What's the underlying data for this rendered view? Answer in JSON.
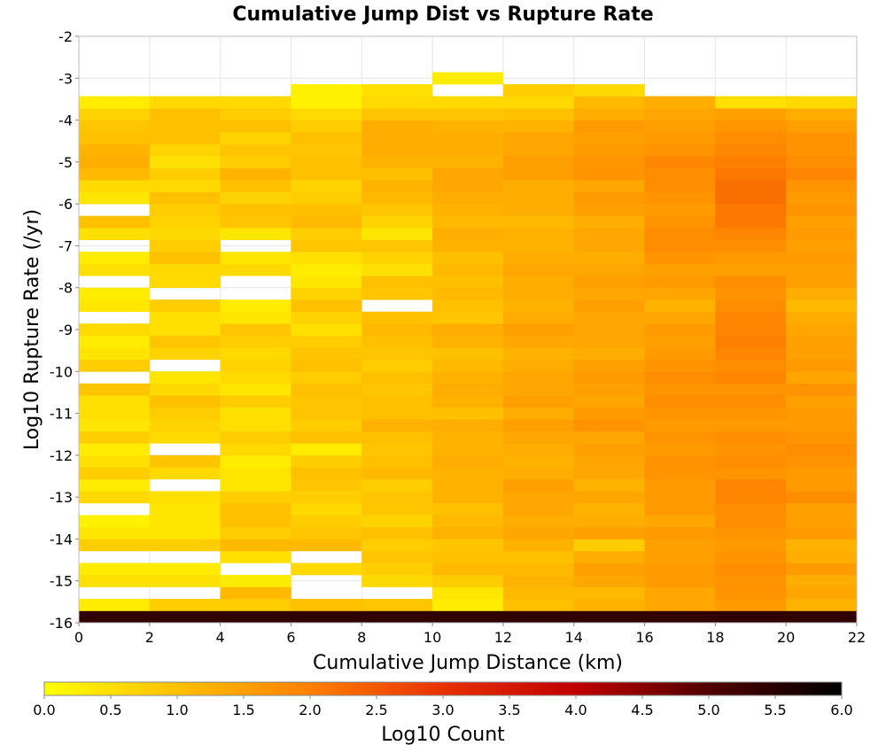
{
  "chart_data": {
    "type": "heatmap",
    "title": "Cumulative Jump Dist vs Rupture Rate",
    "xlabel": "Cumulative Jump Distance (km)",
    "ylabel": "Log10 Rupture Rate (/yr)",
    "xlim": [
      0,
      22
    ],
    "ylim": [
      -16,
      -2
    ],
    "x_ticks": [
      "0",
      "2",
      "4",
      "6",
      "8",
      "10",
      "12",
      "14",
      "16",
      "18",
      "20",
      "22"
    ],
    "y_ticks": [
      "-2",
      "-3",
      "-4",
      "-5",
      "-6",
      "-7",
      "-8",
      "-9",
      "-10",
      "-11",
      "-12",
      "-13",
      "-14",
      "-15",
      "-16"
    ],
    "x_bin_width": 2,
    "y_bin_height": 0.2857,
    "y_bin_start": -16,
    "colorbar": {
      "label": "Log10 Count",
      "range": [
        0.0,
        6.0
      ],
      "ticks": [
        "0.0",
        "0.5",
        "1.0",
        "1.5",
        "2.0",
        "2.5",
        "3.0",
        "3.5",
        "4.0",
        "4.5",
        "5.0",
        "5.5",
        "6.0"
      ],
      "colors": [
        "#ffff00",
        "#ffc000",
        "#ff8000",
        "#e83000",
        "#c00000",
        "#500000",
        "#000000"
      ]
    },
    "grid": true,
    "columns": [
      {
        "x_start": 0,
        "values": [
          5.4,
          0.3,
          null,
          0.5,
          0.3,
          null,
          0.8,
          0.4,
          0.2,
          null,
          0.6,
          0.3,
          0.8,
          0.5,
          0.3,
          0.8,
          0.4,
          0.5,
          0.5,
          0.9,
          null,
          0.8,
          0.4,
          0.3,
          0.6,
          null,
          0.4,
          0.3,
          null,
          0.5,
          0.3,
          null,
          0.5,
          1.0,
          null,
          0.4,
          0.6,
          1.1,
          1.3,
          1.2,
          1.0,
          0.9,
          0.7,
          0.3,
          null,
          null
        ]
      },
      {
        "x_start": 2,
        "values": [
          5.4,
          0.8,
          null,
          0.5,
          0.3,
          null,
          0.8,
          0.4,
          0.4,
          0.4,
          0.5,
          null,
          0.6,
          0.9,
          null,
          0.6,
          0.7,
          0.8,
          1.0,
          0.6,
          0.4,
          null,
          0.7,
          0.9,
          0.5,
          0.5,
          0.8,
          null,
          0.6,
          0.6,
          1.0,
          0.8,
          0.6,
          0.7,
          0.8,
          1.0,
          0.6,
          0.8,
          0.5,
          0.7,
          1.0,
          1.0,
          1.0,
          0.6,
          null,
          null
        ]
      },
      {
        "x_start": 4,
        "values": [
          5.4,
          0.8,
          1.1,
          0.3,
          null,
          0.5,
          1.1,
          0.8,
          1.0,
          1.0,
          0.8,
          0.4,
          0.4,
          0.3,
          0.6,
          0.8,
          0.5,
          0.5,
          0.8,
          0.4,
          0.6,
          0.7,
          0.6,
          0.8,
          0.9,
          0.4,
          0.3,
          null,
          null,
          0.6,
          0.4,
          null,
          0.4,
          0.9,
          1.0,
          0.7,
          1.0,
          1.2,
          0.8,
          0.9,
          0.7,
          1.0,
          0.8,
          0.6,
          null,
          null
        ]
      },
      {
        "x_start": 6,
        "values": [
          5.4,
          1.0,
          null,
          null,
          0.6,
          null,
          1.1,
          0.9,
          0.8,
          0.6,
          0.8,
          0.9,
          1.0,
          0.8,
          0.3,
          1.0,
          0.8,
          0.9,
          0.9,
          1.0,
          0.8,
          1.0,
          0.9,
          0.8,
          0.5,
          0.7,
          1.0,
          0.7,
          0.4,
          0.3,
          0.5,
          0.9,
          0.8,
          1.1,
          1.0,
          0.8,
          0.7,
          1.0,
          1.0,
          0.9,
          1.0,
          0.8,
          0.6,
          0.2,
          0.2,
          null
        ]
      },
      {
        "x_start": 8,
        "values": [
          5.4,
          0.9,
          null,
          0.6,
          0.8,
          0.9,
          0.8,
          1.0,
          0.7,
          0.9,
          0.9,
          0.8,
          1.1,
          1.0,
          0.9,
          1.0,
          1.2,
          1.0,
          1.0,
          0.9,
          1.0,
          0.8,
          0.9,
          1.0,
          1.1,
          1.0,
          null,
          0.9,
          1.0,
          0.5,
          0.7,
          0.9,
          0.4,
          0.7,
          0.9,
          1.1,
          1.2,
          1.0,
          1.2,
          1.3,
          1.3,
          1.3,
          0.9,
          0.6,
          0.5,
          null
        ]
      },
      {
        "x_start": 10,
        "values": [
          5.4,
          0.3,
          0.4,
          0.8,
          1.1,
          1.0,
          0.9,
          1.2,
          1.1,
          1.0,
          1.2,
          1.2,
          1.2,
          1.3,
          1.2,
          1.2,
          1.3,
          1.0,
          1.2,
          1.3,
          1.2,
          1.1,
          1.0,
          1.2,
          1.3,
          0.9,
          1.0,
          1.1,
          1.0,
          1.1,
          1.0,
          1.2,
          1.3,
          1.1,
          1.2,
          1.3,
          1.4,
          1.4,
          1.2,
          1.3,
          1.3,
          1.2,
          0.9,
          0.6,
          null,
          0.3
        ]
      },
      {
        "x_start": 12,
        "values": [
          5.4,
          1.0,
          1.1,
          1.2,
          1.1,
          1.0,
          1.2,
          1.4,
          1.3,
          1.4,
          1.4,
          1.5,
          1.3,
          1.2,
          1.3,
          1.4,
          1.5,
          1.3,
          1.5,
          1.4,
          1.4,
          1.3,
          1.2,
          1.4,
          1.5,
          1.3,
          1.2,
          1.3,
          1.3,
          1.4,
          1.3,
          1.2,
          1.2,
          1.1,
          1.3,
          1.3,
          1.3,
          1.5,
          1.5,
          1.4,
          1.4,
          1.2,
          1.0,
          0.6,
          0.8,
          null
        ]
      },
      {
        "x_start": 14,
        "values": [
          5.4,
          1.2,
          1.1,
          1.4,
          1.5,
          1.3,
          0.8,
          1.5,
          1.3,
          1.2,
          1.4,
          1.2,
          1.4,
          1.4,
          1.5,
          1.4,
          1.7,
          1.6,
          1.4,
          1.5,
          1.6,
          1.5,
          1.3,
          1.4,
          1.4,
          1.4,
          1.5,
          1.4,
          1.5,
          1.4,
          1.3,
          1.4,
          1.4,
          1.3,
          1.5,
          1.6,
          1.4,
          1.7,
          1.7,
          1.6,
          1.5,
          1.6,
          1.3,
          1.1,
          0.6,
          null
        ]
      },
      {
        "x_start": 16,
        "values": [
          5.4,
          1.4,
          1.4,
          1.6,
          1.6,
          1.5,
          1.5,
          1.6,
          1.4,
          1.6,
          1.6,
          1.6,
          1.7,
          1.7,
          1.6,
          1.7,
          1.6,
          1.7,
          1.8,
          1.7,
          1.8,
          1.7,
          1.6,
          1.5,
          1.6,
          1.4,
          1.2,
          1.4,
          1.6,
          1.5,
          1.7,
          1.8,
          1.8,
          1.7,
          1.6,
          1.7,
          1.8,
          1.8,
          1.9,
          1.7,
          1.6,
          1.5,
          1.4,
          1.3,
          null,
          null
        ]
      },
      {
        "x_start": 18,
        "values": [
          5.4,
          1.6,
          1.7,
          1.7,
          1.8,
          1.7,
          1.6,
          1.7,
          1.8,
          1.8,
          1.9,
          1.9,
          1.7,
          1.8,
          1.7,
          1.8,
          1.6,
          1.7,
          1.8,
          1.7,
          1.9,
          1.8,
          1.9,
          2.0,
          1.9,
          1.9,
          1.8,
          1.7,
          1.8,
          1.5,
          1.6,
          1.8,
          1.9,
          2.1,
          2.1,
          2.2,
          2.2,
          2.1,
          2.0,
          1.9,
          1.8,
          1.7,
          1.5,
          0.5,
          null,
          null
        ]
      },
      {
        "x_start": 20,
        "values": [
          5.4,
          1.2,
          1.4,
          1.3,
          1.6,
          1.3,
          1.2,
          1.6,
          1.5,
          1.5,
          1.8,
          1.6,
          1.6,
          1.7,
          1.8,
          1.7,
          1.6,
          1.6,
          1.5,
          1.7,
          1.4,
          1.6,
          1.5,
          1.5,
          1.4,
          1.3,
          1.1,
          1.3,
          1.5,
          1.5,
          1.6,
          1.5,
          1.6,
          1.5,
          1.7,
          1.6,
          1.7,
          1.9,
          1.8,
          1.7,
          1.7,
          1.5,
          1.3,
          0.6,
          null,
          null
        ]
      }
    ]
  }
}
